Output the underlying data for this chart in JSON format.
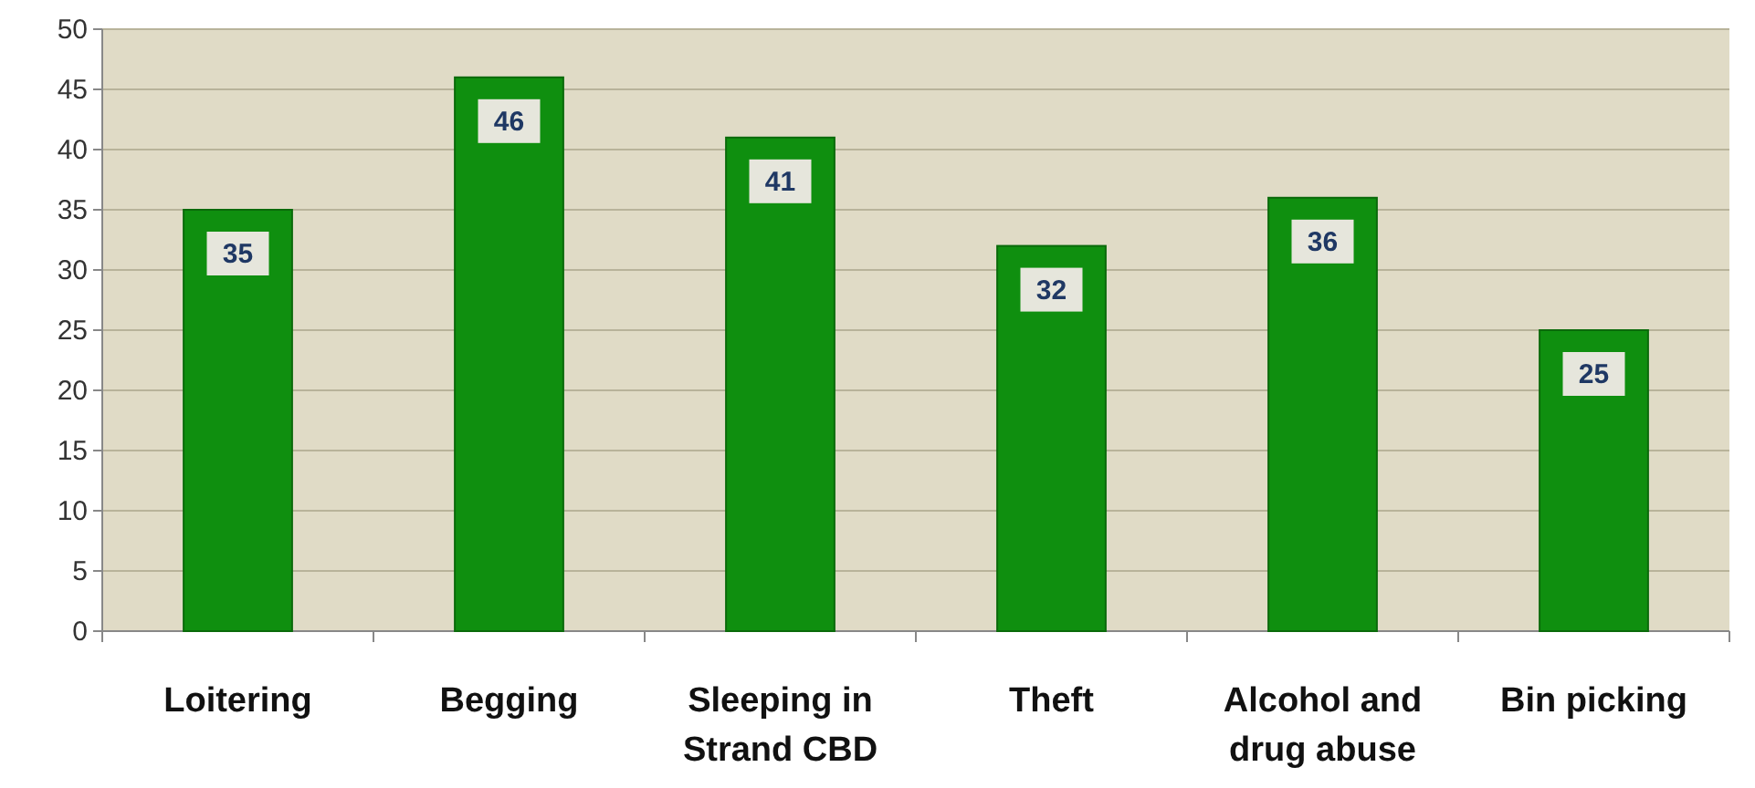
{
  "chart_data": {
    "type": "bar",
    "categories": [
      "Loitering",
      "Begging",
      "Sleeping in Strand CBD",
      "Theft",
      "Alcohol and drug abuse",
      "Bin picking"
    ],
    "values": [
      35,
      46,
      41,
      32,
      36,
      25
    ],
    "color": "#0f8f0f",
    "ylim": [
      0,
      50
    ],
    "yticks": [
      0,
      5,
      10,
      15,
      20,
      25,
      30,
      35,
      40,
      45,
      50
    ],
    "grid": "y",
    "data_labels": true
  }
}
